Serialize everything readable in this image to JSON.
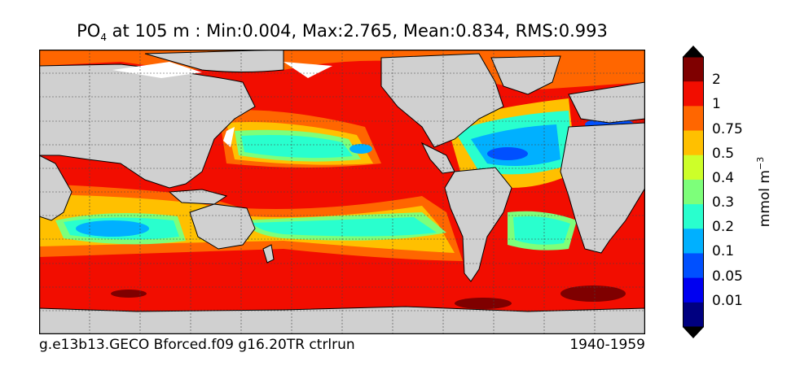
{
  "title": {
    "variable": "PO",
    "subscript": "4",
    "rest": " at 105 m : Min:0.004, Max:2.765, Mean:0.834, RMS:0.993"
  },
  "caption": {
    "run": "g.e13b13.GECO Bforced.f09 g16.20TR ctrlrun",
    "years": "1940-1959"
  },
  "colorbar": {
    "units_base": "mmol m",
    "units_exp": "−3",
    "labels": [
      "2",
      "1",
      "0.75",
      "0.5",
      "0.4",
      "0.3",
      "0.2",
      "0.1",
      "0.05",
      "0.01"
    ],
    "colors": [
      "#7f0000",
      "#f20d00",
      "#ff6600",
      "#ffc000",
      "#cdff29",
      "#7dff7a",
      "#29ffce",
      "#00b0ff",
      "#0050ff",
      "#0000f1",
      "#000080"
    ],
    "land_color": "#d0d0d0"
  }
}
